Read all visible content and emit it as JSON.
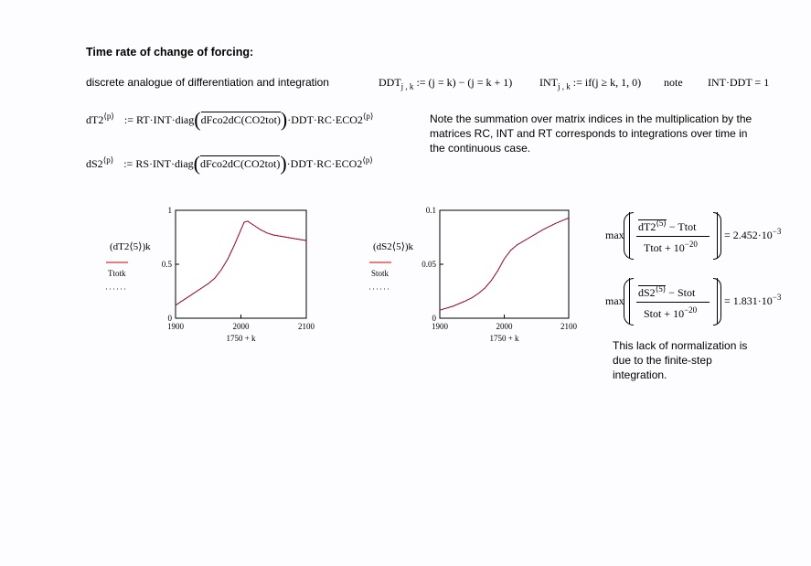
{
  "title": "Time rate of change of forcing:",
  "intro": "discrete analogue of differentiation and integration",
  "defs": {
    "ddt_name": "DDT",
    "ddt_sub": "j , k",
    "ddt_rhs": ":= (j = k) − (j = k + 1)",
    "int_name": "INT",
    "int_sub": "j , k",
    "int_rhs": ":= if(j ≥ k, 1, 0)",
    "note_word": "note",
    "identity": "INT·DDT = 1"
  },
  "eq1": {
    "lhs": "dT2",
    "sup": "⟨p⟩",
    "pre": ":= RT·INT·diag",
    "vec": "dFco2dC(CO2tot)",
    "post": "·DDT·RC·ECO2",
    "post_sup": "⟨p⟩"
  },
  "eq2": {
    "lhs": "dS2",
    "sup": "⟨p⟩",
    "pre": ":= RS·INT·diag",
    "vec": "dFco2dC(CO2tot)",
    "post": "·DDT·RC·ECO2",
    "post_sup": "⟨p⟩"
  },
  "summation_note": "Note the summation over matrix indices in the multiplication by the matrices RC, INT and RT corresponds to integrations over time in the continuous case.",
  "max1": {
    "fn": "max",
    "num_a": "dT2",
    "num_sup": "⟨5⟩",
    "num_b": " − Ttot",
    "den": "Ttot + 10",
    "den_exp": "−20",
    "res": "= 2.452·10",
    "res_exp": "−3"
  },
  "max2": {
    "fn": "max",
    "num_a": "dS2",
    "num_sup": "⟨5⟩",
    "num_b": " − Stot",
    "den": "Stot + 10",
    "den_exp": "−20",
    "res": "= 1.831·10",
    "res_exp": "−3"
  },
  "normalization_note": "This lack of normalization is due to the finite-step integration.",
  "colors": {
    "series1": "#cc0000",
    "series2": "#2222aa"
  },
  "chart_data": [
    {
      "type": "line",
      "xlabel": "1750 + k",
      "y_series_label": "(dT2⟨5⟩)k",
      "legend": [
        "(dT2⟨5⟩)k",
        "Ttotk"
      ],
      "xlim": [
        1900,
        2100
      ],
      "ylim": [
        0,
        1
      ],
      "xticks": [
        "1900",
        "2000",
        "2100"
      ],
      "yticks": [
        "0",
        "0.5",
        "1"
      ],
      "series": [
        {
          "name": "(dT2⟨5⟩)k",
          "style": "solid",
          "color": "#cc0000",
          "x": [
            1900,
            1910,
            1920,
            1930,
            1940,
            1950,
            1960,
            1970,
            1980,
            1990,
            2000,
            2005,
            2010,
            2020,
            2030,
            2040,
            2050,
            2060,
            2070,
            2080,
            2090,
            2100
          ],
          "y": [
            0.12,
            0.16,
            0.2,
            0.24,
            0.28,
            0.32,
            0.37,
            0.45,
            0.55,
            0.68,
            0.82,
            0.89,
            0.9,
            0.86,
            0.82,
            0.79,
            0.77,
            0.76,
            0.75,
            0.74,
            0.73,
            0.72
          ]
        },
        {
          "name": "Ttotk",
          "style": "dotted",
          "color": "#2222aa",
          "x": [
            1900,
            1910,
            1920,
            1930,
            1940,
            1950,
            1960,
            1970,
            1980,
            1990,
            2000,
            2005,
            2010,
            2020,
            2030,
            2040,
            2050,
            2060,
            2070,
            2080,
            2090,
            2100
          ],
          "y": [
            0.12,
            0.16,
            0.2,
            0.24,
            0.28,
            0.32,
            0.37,
            0.45,
            0.55,
            0.68,
            0.82,
            0.89,
            0.9,
            0.86,
            0.82,
            0.79,
            0.77,
            0.76,
            0.75,
            0.74,
            0.73,
            0.72
          ]
        }
      ]
    },
    {
      "type": "line",
      "xlabel": "1750 + k",
      "y_series_label": "(dS2⟨5⟩)k",
      "legend": [
        "(dS2⟨5⟩)k",
        "Stotk"
      ],
      "xlim": [
        1900,
        2100
      ],
      "ylim": [
        0,
        0.1
      ],
      "xticks": [
        "1900",
        "2000",
        "2100"
      ],
      "yticks": [
        "0",
        "0.05",
        "0.1"
      ],
      "series": [
        {
          "name": "(dS2⟨5⟩)k",
          "style": "solid",
          "color": "#cc0000",
          "x": [
            1900,
            1920,
            1940,
            1950,
            1960,
            1970,
            1980,
            1990,
            2000,
            2010,
            2020,
            2040,
            2060,
            2080,
            2100
          ],
          "y": [
            0.0075,
            0.011,
            0.016,
            0.019,
            0.023,
            0.028,
            0.035,
            0.044,
            0.055,
            0.063,
            0.068,
            0.075,
            0.082,
            0.088,
            0.093
          ]
        },
        {
          "name": "Stotk",
          "style": "dotted",
          "color": "#2222aa",
          "x": [
            1900,
            1920,
            1940,
            1950,
            1960,
            1970,
            1980,
            1990,
            2000,
            2010,
            2020,
            2040,
            2060,
            2080,
            2100
          ],
          "y": [
            0.0075,
            0.011,
            0.016,
            0.019,
            0.023,
            0.028,
            0.035,
            0.044,
            0.055,
            0.063,
            0.068,
            0.075,
            0.082,
            0.088,
            0.093
          ]
        }
      ]
    }
  ]
}
